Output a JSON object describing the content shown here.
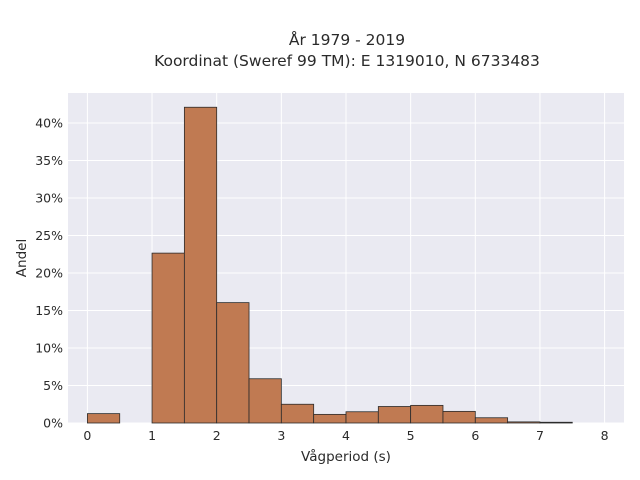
{
  "chart_data": {
    "type": "bar",
    "title_lines": [
      "År 1979 - 2019",
      "Koordinat (Sweref 99 TM): E 1319010, N 6733483"
    ],
    "xlabel": "Vågperiod (s)",
    "ylabel": "Andel",
    "xlim": [
      -0.3,
      8.3
    ],
    "ylim": [
      0,
      0.44
    ],
    "xticks": [
      0,
      1,
      2,
      3,
      4,
      5,
      6,
      7,
      8
    ],
    "yticks": [
      0,
      0.05,
      0.1,
      0.15,
      0.2,
      0.25,
      0.3,
      0.35,
      0.4
    ],
    "ytick_labels": [
      "0%",
      "5%",
      "10%",
      "15%",
      "20%",
      "25%",
      "30%",
      "35%",
      "40%"
    ],
    "bin_width": 0.5,
    "bins": [
      {
        "start": 0.0,
        "value": 0.0125
      },
      {
        "start": 0.5,
        "value": 0.0
      },
      {
        "start": 1.0,
        "value": 0.2265
      },
      {
        "start": 1.5,
        "value": 0.421
      },
      {
        "start": 2.0,
        "value": 0.1605
      },
      {
        "start": 2.5,
        "value": 0.059
      },
      {
        "start": 3.0,
        "value": 0.025
      },
      {
        "start": 3.5,
        "value": 0.0115
      },
      {
        "start": 4.0,
        "value": 0.015
      },
      {
        "start": 4.5,
        "value": 0.022
      },
      {
        "start": 5.0,
        "value": 0.0235
      },
      {
        "start": 5.5,
        "value": 0.0155
      },
      {
        "start": 6.0,
        "value": 0.007
      },
      {
        "start": 6.5,
        "value": 0.0015
      },
      {
        "start": 7.0,
        "value": 0.001
      }
    ],
    "grid": true,
    "colors": {
      "bar_fill": "#c07a52",
      "bar_stroke": "#2b2b2b",
      "plot_bg": "#eaeaf2",
      "grid": "#ffffff"
    }
  }
}
